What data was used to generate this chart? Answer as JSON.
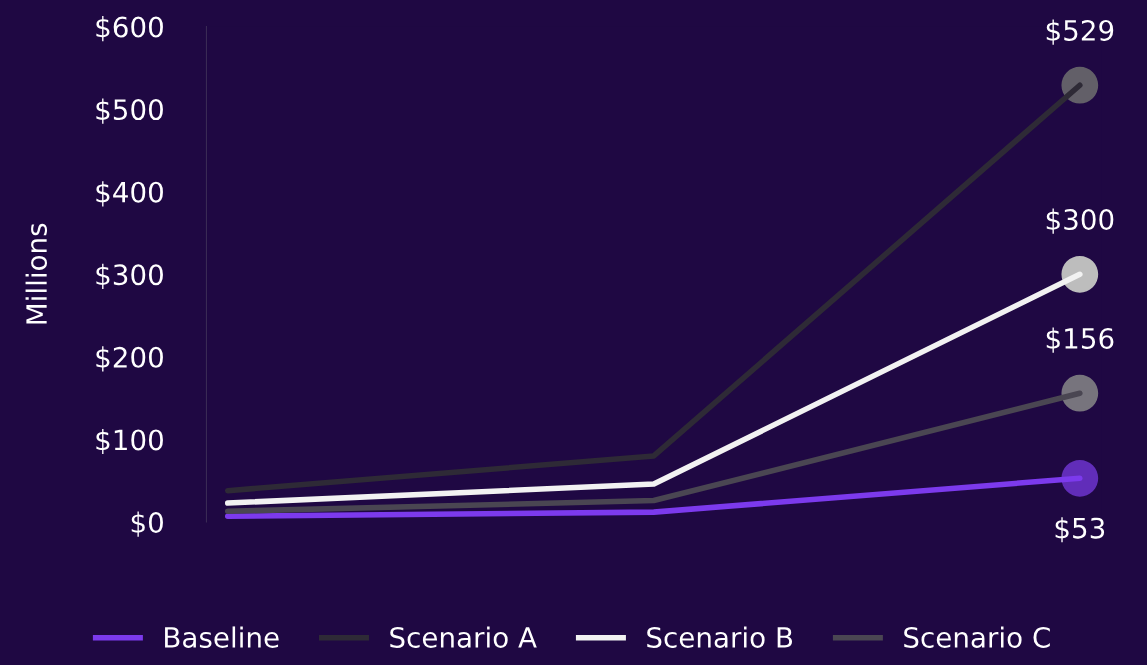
{
  "chart_data": {
    "type": "line",
    "ylabel": "Millions",
    "categories": [
      null,
      null,
      null
    ],
    "series": [
      {
        "name": "Baseline",
        "color": "#7c3aed",
        "values": [
          7,
          12,
          53
        ],
        "value_labels": [
          null,
          null,
          "$53"
        ]
      },
      {
        "name": "Scenario A",
        "color": "#2e2a36",
        "values": [
          38,
          80,
          529
        ],
        "value_labels": [
          null,
          null,
          "$529"
        ]
      },
      {
        "name": "Scenario B",
        "color": "#f2f2f2",
        "values": [
          23,
          46,
          300
        ],
        "value_labels": [
          null,
          null,
          "$300"
        ]
      },
      {
        "name": "Scenario C",
        "color": "#4a4652",
        "values": [
          13,
          26,
          156
        ],
        "value_labels": [
          null,
          null,
          "$156"
        ]
      }
    ],
    "ylim": [
      0,
      600
    ],
    "yticks": [
      {
        "value": 0,
        "label": "$0"
      },
      {
        "value": 100,
        "label": "$100"
      },
      {
        "value": 200,
        "label": "$200"
      },
      {
        "value": 300,
        "label": "$300"
      },
      {
        "value": 400,
        "label": "$400"
      },
      {
        "value": 500,
        "label": "$500"
      },
      {
        "value": 600,
        "label": "$600"
      }
    ],
    "tick_labels": "y",
    "grid": false,
    "legend": "bottom",
    "line_style": "solid"
  }
}
